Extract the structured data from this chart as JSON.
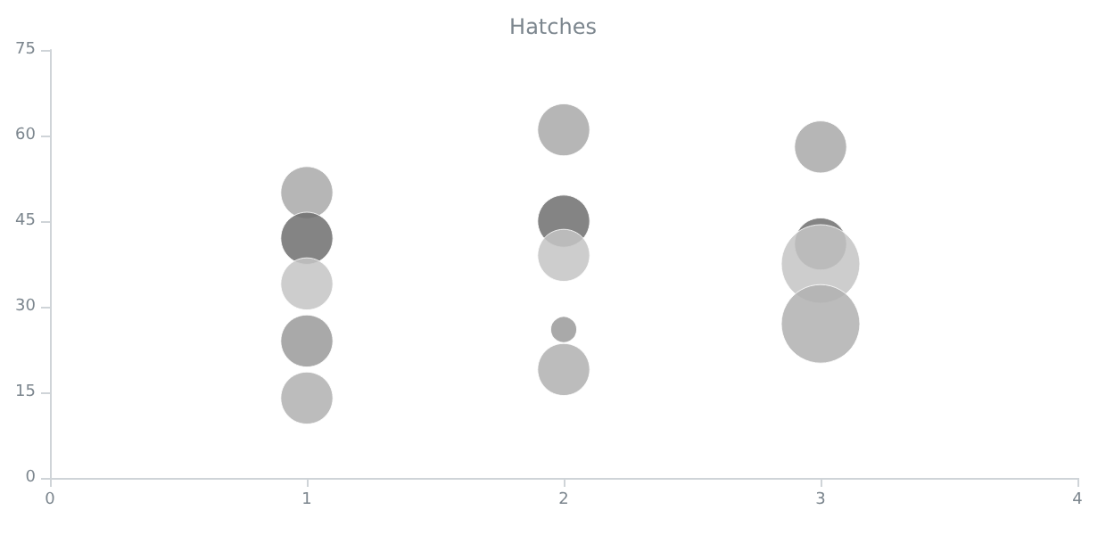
{
  "chart_data": {
    "type": "bubble",
    "title": "Hatches",
    "xlim": [
      0,
      4
    ],
    "xticks": [
      0,
      1,
      2,
      3,
      4
    ],
    "ylim": [
      0,
      75
    ],
    "yticks": [
      0,
      15,
      30,
      45,
      60,
      75
    ],
    "grid": false,
    "series": [
      {
        "color": "#a9a9a9",
        "x": [
          1,
          2,
          3
        ],
        "values": [
          50,
          61,
          58
        ],
        "sizes": [
          0.44,
          0.44,
          0.44
        ]
      },
      {
        "color": "#6e6e6e",
        "x": [
          1,
          2,
          3
        ],
        "values": [
          42,
          45,
          41
        ],
        "sizes": [
          0.44,
          0.44,
          0.44
        ]
      },
      {
        "color": "#c4c4c4",
        "x": [
          1,
          2,
          3
        ],
        "values": [
          34,
          39,
          37.5
        ],
        "sizes": [
          0.44,
          0.44,
          1
        ]
      },
      {
        "color": "#9a9a9a",
        "x": [
          1,
          2
        ],
        "values": [
          24,
          26
        ],
        "sizes": [
          0.44,
          0.11
        ]
      },
      {
        "color": "#b0b0b0",
        "x": [
          1,
          2,
          3
        ],
        "values": [
          14,
          19,
          27
        ],
        "sizes": [
          0.44,
          0.44,
          1
        ]
      }
    ]
  }
}
